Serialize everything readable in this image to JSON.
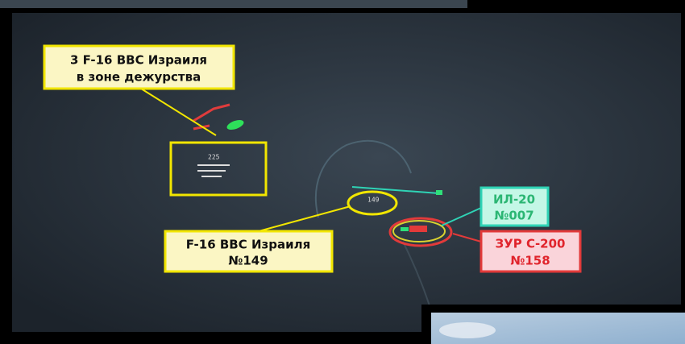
{
  "labels": {
    "group": {
      "line1": "3 F-16 ВВС Израиля",
      "line2": "в зоне дежурства"
    },
    "f16": {
      "line1": "F-16 ВВС Израиля",
      "line2": "№149"
    },
    "il20": {
      "line1": "ИЛ-20",
      "line2": "№007"
    },
    "s200": {
      "line1": "ЗУР С-200",
      "line2": "№158"
    }
  },
  "radar_marks": {
    "group_code": "225",
    "f16_code": "149"
  }
}
